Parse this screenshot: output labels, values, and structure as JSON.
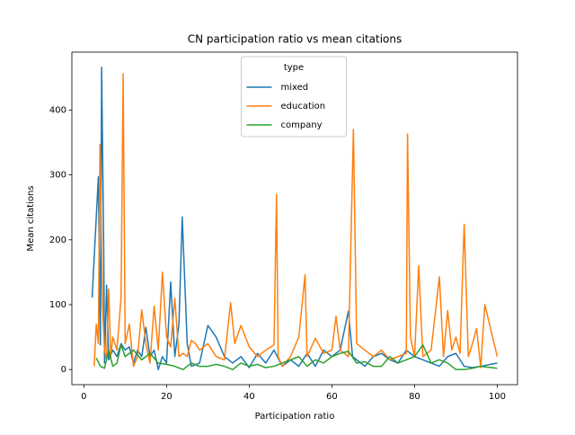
{
  "chart_data": {
    "type": "line",
    "title": "CN participation ratio vs mean citations",
    "x_label": "Participation ratio",
    "y_label": "Mean citations",
    "legend_title": "type",
    "legend": "upper center",
    "xlim": [
      -2.9,
      104.9
    ],
    "ylim": [
      -23.3,
      489.3
    ],
    "xticks": [
      0,
      20,
      40,
      60,
      80,
      100
    ],
    "yticks": [
      0,
      100,
      200,
      300,
      400
    ],
    "series": [
      {
        "name": "mixed",
        "color": "#1f77b4",
        "x": [
          2,
          3.5,
          4,
          4.3,
          4.8,
          5,
          5.5,
          6,
          7,
          8,
          9,
          10,
          11,
          12,
          13,
          14,
          15,
          16,
          17,
          18,
          19,
          20,
          21,
          22,
          23,
          23.8,
          25,
          26,
          28,
          30,
          32,
          34,
          36,
          38,
          40,
          42,
          44,
          46,
          48,
          50,
          52,
          54,
          56,
          58,
          60,
          62,
          64,
          65,
          66,
          68,
          70,
          72,
          74,
          76,
          78,
          80,
          82,
          84,
          86,
          88,
          90,
          92,
          94,
          96,
          100
        ],
        "values": [
          111,
          297,
          38,
          466,
          187,
          10,
          130,
          15,
          30,
          20,
          40,
          30,
          35,
          10,
          30,
          20,
          65,
          20,
          30,
          0,
          20,
          10,
          135,
          20,
          70,
          235,
          40,
          5,
          10,
          68,
          50,
          20,
          10,
          20,
          3,
          25,
          10,
          30,
          5,
          15,
          5,
          25,
          5,
          30,
          20,
          30,
          90,
          20,
          15,
          5,
          20,
          25,
          15,
          10,
          30,
          20,
          15,
          10,
          5,
          20,
          25,
          5,
          3,
          5,
          10
        ]
      },
      {
        "name": "education",
        "color": "#ff7f0e",
        "x": [
          2.5,
          3,
          3.5,
          3.9,
          4.5,
          5,
          5.5,
          6,
          6.5,
          7,
          8,
          9,
          9.5,
          10,
          11,
          12,
          13,
          14,
          15,
          16,
          17,
          18,
          19,
          20,
          21,
          22,
          23,
          24,
          25,
          26,
          27,
          28,
          30,
          32,
          34,
          35.5,
          36.5,
          38,
          40,
          42,
          44,
          46,
          46.6,
          47,
          48,
          50,
          52,
          53.5,
          54,
          56,
          58,
          60,
          61,
          62,
          64,
          65.2,
          66,
          68,
          70,
          72,
          74,
          76,
          78,
          78.3,
          79,
          80,
          81,
          82,
          84,
          86,
          87,
          88,
          89,
          90,
          91,
          92,
          93,
          94,
          95,
          96,
          97,
          100
        ],
        "values": [
          5,
          70,
          40,
          347,
          100,
          30,
          15,
          124,
          20,
          50,
          30,
          111,
          456,
          40,
          70,
          5,
          20,
          92,
          40,
          10,
          98,
          30,
          150,
          50,
          35,
          110,
          20,
          25,
          20,
          45,
          40,
          30,
          40,
          20,
          15,
          103,
          40,
          68,
          35,
          20,
          30,
          38,
          270,
          20,
          5,
          20,
          50,
          146,
          20,
          48,
          25,
          30,
          82,
          30,
          20,
          370,
          40,
          30,
          20,
          30,
          15,
          20,
          25,
          363,
          50,
          20,
          160,
          20,
          30,
          143,
          20,
          91,
          30,
          50,
          25,
          224,
          20,
          40,
          63,
          3,
          100,
          20
        ]
      },
      {
        "name": "company",
        "color": "#2ca02c",
        "x": [
          3,
          4,
          5,
          6,
          7,
          8,
          9,
          10,
          12,
          14,
          16,
          18,
          20,
          22,
          24,
          26,
          28,
          30,
          32,
          34,
          36,
          38,
          40,
          42,
          44,
          46,
          48,
          50,
          52,
          54,
          56,
          58,
          60,
          62,
          64,
          66,
          68,
          70,
          72,
          74,
          76,
          78,
          80,
          82,
          84,
          86,
          88,
          90,
          92,
          94,
          96,
          100
        ],
        "values": [
          18,
          5,
          2,
          30,
          5,
          10,
          38,
          20,
          30,
          15,
          25,
          10,
          8,
          5,
          0,
          10,
          5,
          5,
          8,
          5,
          0,
          10,
          5,
          8,
          3,
          5,
          10,
          15,
          20,
          5,
          15,
          10,
          20,
          25,
          28,
          10,
          12,
          5,
          5,
          20,
          10,
          15,
          20,
          38,
          10,
          15,
          10,
          0,
          0,
          2,
          5,
          2
        ]
      }
    ]
  }
}
